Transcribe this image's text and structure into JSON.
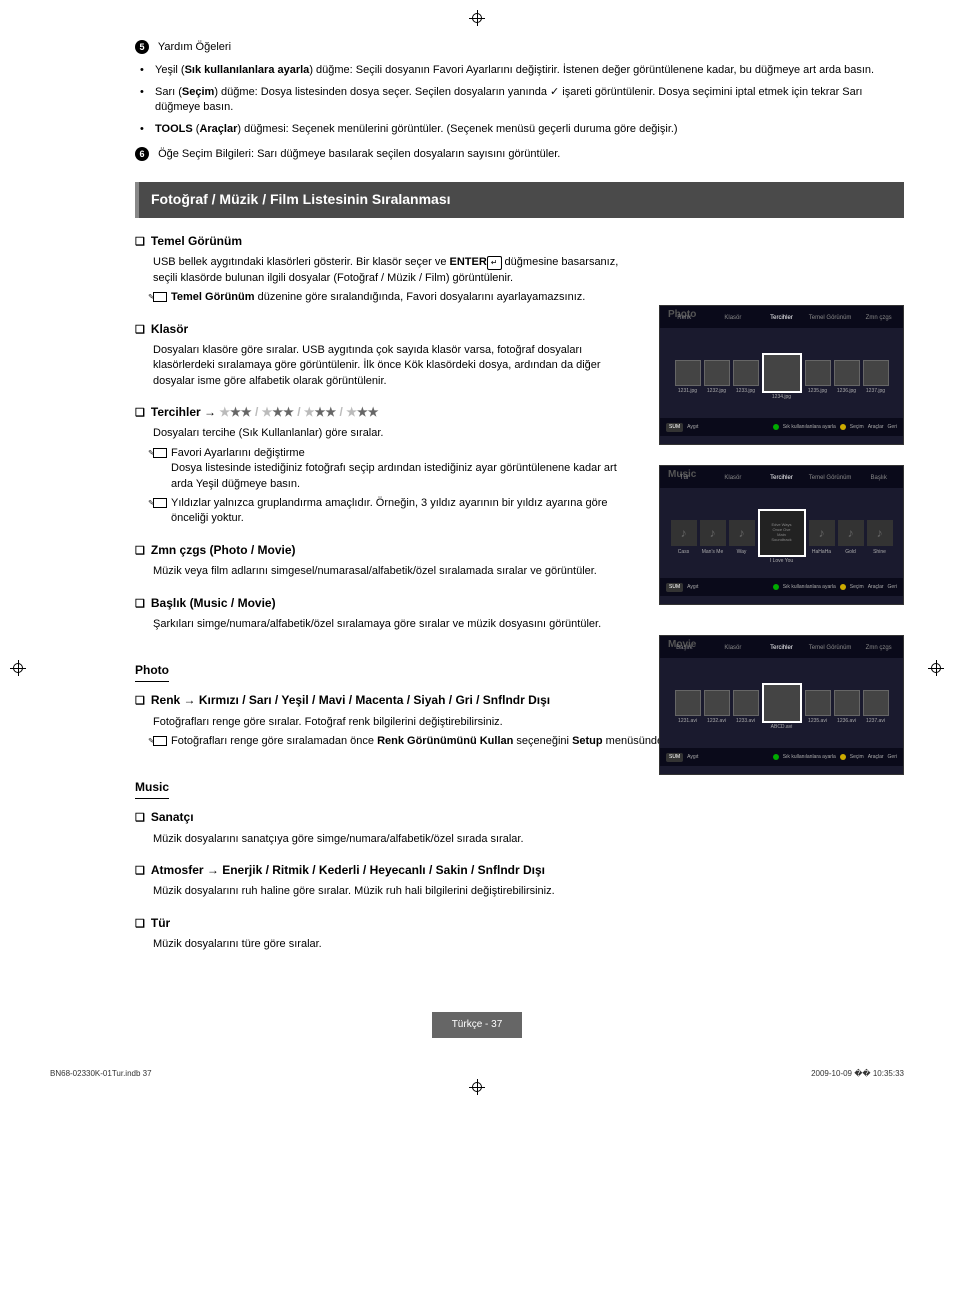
{
  "help_items": {
    "title5": "Yardım Öğeleri",
    "bullets": [
      {
        "prefix": "Yeşil (",
        "bold": "Sık kullanılanlara ayarla",
        "suffix": ") düğme: Seçili dosyanın Favori Ayarlarını değiştirir. İstenen değer görüntülenene kadar, bu düğmeye art arda basın."
      },
      {
        "prefix": "Sarı (",
        "bold": "Seçim",
        "suffix": ") düğme: Dosya listesinden dosya seçer. Seçilen dosyaların yanında ",
        "check": "✓",
        "suffix2": " işareti görüntülenir. Dosya seçimini iptal etmek için tekrar Sarı düğmeye basın."
      },
      {
        "prefix": "",
        "bold": "TOOLS",
        "middle": " (",
        "bold2": "Araçlar",
        "suffix": ") düğmesi: Seçenek menülerini görüntüler. (Seçenek menüsü geçerli duruma göre değişir.)"
      }
    ],
    "title6": "Öğe Seçim Bilgileri: Sarı düğmeye basılarak seçilen dosyaların sayısını görüntüler."
  },
  "section_header": "Fotoğraf / Müzik / Film Listesinin Sıralanması",
  "temel": {
    "title": "Temel Görünüm",
    "body": "USB bellek aygıtındaki klasörleri gösterir. Bir klasör seçer ve ",
    "enter": "ENTER",
    "body2": " düğmesine basarsanız, seçili klasörde bulunan ilgili dosyalar (Fotoğraf / Müzik / Film) görüntülenir.",
    "note": "Temel Görünüm düzenine göre sıralandığında, Favori dosyalarını ayarlayamazsınız.",
    "note_bold": "Temel Görünüm"
  },
  "klasor": {
    "title": "Klasör",
    "body": "Dosyaları klasöre göre sıralar. USB aygıtında çok sayıda klasör varsa, fotoğraf dosyaları klasörlerdeki sıralamaya göre görüntülenir. İlk önce Kök klasördeki dosya, ardından da diğer dosyalar isme göre alfabetik olarak görüntülenir."
  },
  "tercihler": {
    "title": "Tercihler → ",
    "stars": "★★★ / ★★★ / ★★★ / ★★★",
    "body": "Dosyaları tercihe (Sık Kullanlanlar) göre sıralar.",
    "note1_title": "Favori Ayarlarını değiştirme",
    "note1_body": "Dosya listesinde istediğiniz fotoğrafı seçip ardından istediğiniz ayar görüntülenene kadar art arda Yeşil düğmeye basın.",
    "note2": "Yıldızlar yalnızca gruplandırma amaçlıdır. Örneğin, 3 yıldız ayarının bir yıldız ayarına göre önceliği yoktur."
  },
  "zmn": {
    "title": "Zmn çzgs (Photo / Movie)",
    "body": "Müzik veya film adlarını simgesel/numarasal/alfabetik/özel sıralamada sıralar ve görüntüler."
  },
  "baslik": {
    "title": "Başlık (Music / Movie)",
    "body": "Şarkıları simge/numara/alfabetik/özel sıralamaya göre sıralar ve müzik dosyasını görüntüler."
  },
  "photo_header": "Photo",
  "renk": {
    "title": "Renk → Kırmızı / Sarı / Yeşil / Mavi / Macenta / Siyah / Gri / Snflndr Dışı",
    "body": "Fotoğrafları renge göre sıralar. Fotoğraf renk bilgilerini değiştirebilirsiniz.",
    "note_pre": "Fotoğrafları renge göre sıralamadan önce ",
    "note_bold1": "Renk Görünümünü Kullan",
    "note_mid": " seçeneğini ",
    "note_bold2": "Setup",
    "note_post": " menüsünde Açık olarak ayarlamanız gerekir."
  },
  "music_header": "Music",
  "sanatci": {
    "title": "Sanatçı",
    "body": "Müzik dosyalarını sanatçıya göre simge/numara/alfabetik/özel sırada sıralar."
  },
  "atmosfer": {
    "title": "Atmosfer → Enerjik / Ritmik / Kederli / Heyecanlı / Sakin / Snflndr Dışı",
    "body": "Müzik dosyalarını ruh haline göre sıralar. Müzik ruh hali bilgilerini değiştirebilirsiniz."
  },
  "tur": {
    "title": "Tür",
    "body": "Müzik dosyalarını türe göre sıralar."
  },
  "screenshots": {
    "photo": {
      "title": "Photo",
      "tabs": [
        "Renk",
        "Klasör",
        "Tercihler",
        "Temel Görünüm",
        "Zmn çzgs"
      ],
      "thumbs": [
        "1231.jpg",
        "1232.jpg",
        "1233.jpg",
        "1234.jpg",
        "1235.jpg",
        "1236.jpg",
        "1237.jpg"
      ],
      "footer": [
        "SUM",
        "Aygıt",
        "Sık kullanılanlara ayarla",
        "Seçim",
        "Araçlar",
        "Geri"
      ]
    },
    "music": {
      "title": "Music",
      "tabs": [
        "Tür",
        "Klasör",
        "Tercihler",
        "Temel Görünüm",
        "Başlık"
      ],
      "center_lines": [
        "Edve Ways",
        "Once Ove",
        "Main",
        "Soundtrack"
      ],
      "center_main": "I Love You",
      "labels": [
        "Cass",
        "Man's Me",
        "Way",
        "",
        "HaHaHa",
        "Gold",
        "Shine"
      ],
      "footer": [
        "SUM",
        "Aygıt",
        "Sık kullanılanlara ayarla",
        "Seçim",
        "Araçlar",
        "Geri"
      ]
    },
    "movie": {
      "title": "Movie",
      "tabs": [
        "Başlık",
        "Klasör",
        "Tercihler",
        "Temel Görünüm",
        "Zmn çzgs"
      ],
      "thumbs": [
        "1231.avi",
        "1232.avi",
        "1233.avi",
        "ABCD.avi",
        "1235.avi",
        "1236.avi",
        "1237.avi"
      ],
      "footer": [
        "SUM",
        "Aygıt",
        "Sık kullanılanlara ayarla",
        "Seçim",
        "Araçlar",
        "Geri"
      ]
    }
  },
  "page_footer": "Türkçe - 37",
  "meta": {
    "left": "BN68-02330K-01Tur.indb   37",
    "right": "2009-10-09   �� 10:35:33"
  }
}
